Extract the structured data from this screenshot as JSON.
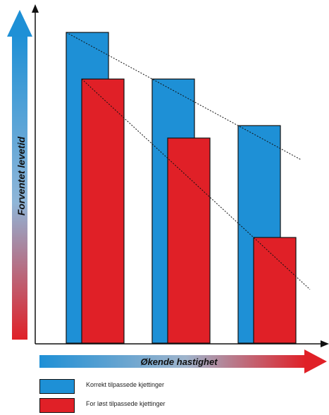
{
  "chart_data": {
    "type": "bar",
    "categories": [
      "",
      "",
      ""
    ],
    "series": [
      {
        "name": "Korrekt tilpassede kjettinger",
        "color": "#1E90D6",
        "values": [
          100,
          85,
          70
        ]
      },
      {
        "name": "For løst tilpassede kjettinger",
        "color": "#E02027",
        "values": [
          85,
          66,
          34
        ]
      }
    ],
    "ylabel": "Forventet levetid",
    "xlabel": "Økende hastighet",
    "ylim": [
      0,
      105
    ],
    "trendlines": true,
    "legend_placement": "bottom-left"
  }
}
